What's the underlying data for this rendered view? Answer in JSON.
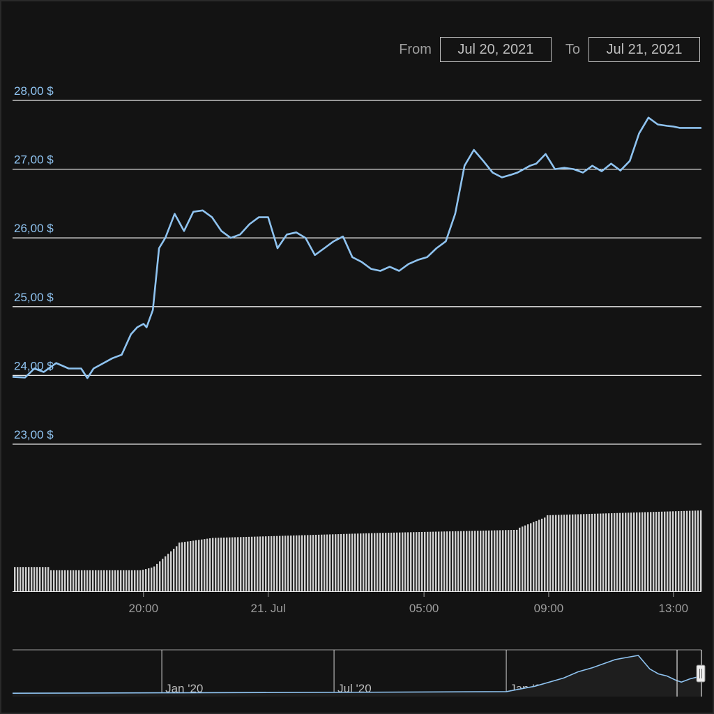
{
  "range_selector": {
    "from_label": "From",
    "from_value": "Jul 20, 2021",
    "to_label": "To",
    "to_value": "Jul 21, 2021"
  },
  "colors": {
    "background": "#131313",
    "line": "#8fc3f0",
    "grid": "#e6e6e6",
    "volume": "#cfcfcf"
  },
  "chart_data": {
    "type": "line",
    "title": "",
    "ylabel": "",
    "xlabel": "",
    "grid": true,
    "ylim": [
      22.9,
      28.0
    ],
    "y_ticks": [
      "23,00 $",
      "24,00 $",
      "25,00 $",
      "26,00 $",
      "27,00 $",
      "28,00 $"
    ],
    "y_tick_values": [
      23,
      24,
      25,
      26,
      27,
      28
    ],
    "x_ticks": [
      "20:00",
      "21. Jul",
      "05:00",
      "09:00",
      "13:00"
    ],
    "x_tick_hours": [
      20,
      24,
      29,
      33,
      37
    ],
    "xlim_hours": [
      15.8,
      37.9
    ],
    "price_series": {
      "hours": [
        15.8,
        16.2,
        16.5,
        16.8,
        17.2,
        17.6,
        18.0,
        18.2,
        18.4,
        18.6,
        19.0,
        19.3,
        19.6,
        19.8,
        20.0,
        20.1,
        20.3,
        20.5,
        20.7,
        21.0,
        21.3,
        21.6,
        21.9,
        22.2,
        22.5,
        22.8,
        23.1,
        23.4,
        23.7,
        24.0,
        24.3,
        24.6,
        24.9,
        25.2,
        25.5,
        25.8,
        26.1,
        26.4,
        26.7,
        27.0,
        27.3,
        27.6,
        27.9,
        28.2,
        28.5,
        28.8,
        29.1,
        29.4,
        29.7,
        30.0,
        30.3,
        30.6,
        30.9,
        31.2,
        31.5,
        31.8,
        32.0,
        32.2,
        32.4,
        32.6,
        32.9,
        33.2,
        33.5,
        33.8,
        34.1,
        34.4,
        34.7,
        35.0,
        35.3,
        35.6,
        35.9,
        36.2,
        36.5,
        36.8,
        37.0,
        37.2,
        37.4,
        37.6,
        37.9
      ],
      "values": [
        23.98,
        23.97,
        24.1,
        24.05,
        24.18,
        24.1,
        24.1,
        23.96,
        24.1,
        24.15,
        24.25,
        24.3,
        24.6,
        24.7,
        24.75,
        24.7,
        24.95,
        25.85,
        26.0,
        26.35,
        26.1,
        26.38,
        26.4,
        26.3,
        26.1,
        26.0,
        26.05,
        26.2,
        26.3,
        26.3,
        25.85,
        26.05,
        26.08,
        26.0,
        25.75,
        25.85,
        25.95,
        26.02,
        25.72,
        25.65,
        25.55,
        25.52,
        25.58,
        25.52,
        25.62,
        25.68,
        25.72,
        25.85,
        25.95,
        26.35,
        27.05,
        27.28,
        27.12,
        26.95,
        26.88,
        26.92,
        26.95,
        27.0,
        27.05,
        27.08,
        27.22,
        27.0,
        27.02,
        27.0,
        26.95,
        27.05,
        26.97,
        27.08,
        26.98,
        27.12,
        27.52,
        27.75,
        27.65,
        27.63,
        27.62,
        27.6,
        27.6,
        27.6,
        27.6
      ]
    },
    "volume_series": {
      "name": "",
      "segments": [
        {
          "from_hour": 15.8,
          "to_hour": 17.0,
          "from_value": 0.3,
          "to_value": 0.3
        },
        {
          "from_hour": 17.0,
          "to_hour": 19.9,
          "from_value": 0.26,
          "to_value": 0.26
        },
        {
          "from_hour": 19.9,
          "to_hour": 20.3,
          "from_value": 0.26,
          "to_value": 0.3
        },
        {
          "from_hour": 20.3,
          "to_hour": 21.1,
          "from_value": 0.3,
          "to_value": 0.58
        },
        {
          "from_hour": 21.1,
          "to_hour": 22.2,
          "from_value": 0.6,
          "to_value": 0.66
        },
        {
          "from_hour": 22.2,
          "to_hour": 27.4,
          "from_value": 0.66,
          "to_value": 0.72
        },
        {
          "from_hour": 27.4,
          "to_hour": 32.0,
          "from_value": 0.72,
          "to_value": 0.76
        },
        {
          "from_hour": 32.0,
          "to_hour": 32.9,
          "from_value": 0.78,
          "to_value": 0.92
        },
        {
          "from_hour": 32.9,
          "to_hour": 37.9,
          "from_value": 0.94,
          "to_value": 1.0
        }
      ]
    },
    "navigator": {
      "x_ticks": [
        "Jan '20",
        "Jul '20",
        "Jan '21"
      ],
      "x_tick_months": [
        0,
        6,
        12
      ],
      "xlim_months": [
        -5.2,
        18.8
      ],
      "series_months": [
        -5.2,
        0,
        6,
        12,
        13,
        14,
        14.5,
        15,
        15.4,
        15.8,
        16.2,
        16.6,
        17,
        17.3,
        17.6,
        17.9,
        18.1,
        18.4,
        18.8
      ],
      "series_values": [
        0.03,
        0.04,
        0.05,
        0.07,
        0.2,
        0.4,
        0.55,
        0.65,
        0.75,
        0.85,
        0.9,
        0.95,
        0.62,
        0.5,
        0.45,
        0.35,
        0.3,
        0.38,
        0.45
      ]
    }
  }
}
